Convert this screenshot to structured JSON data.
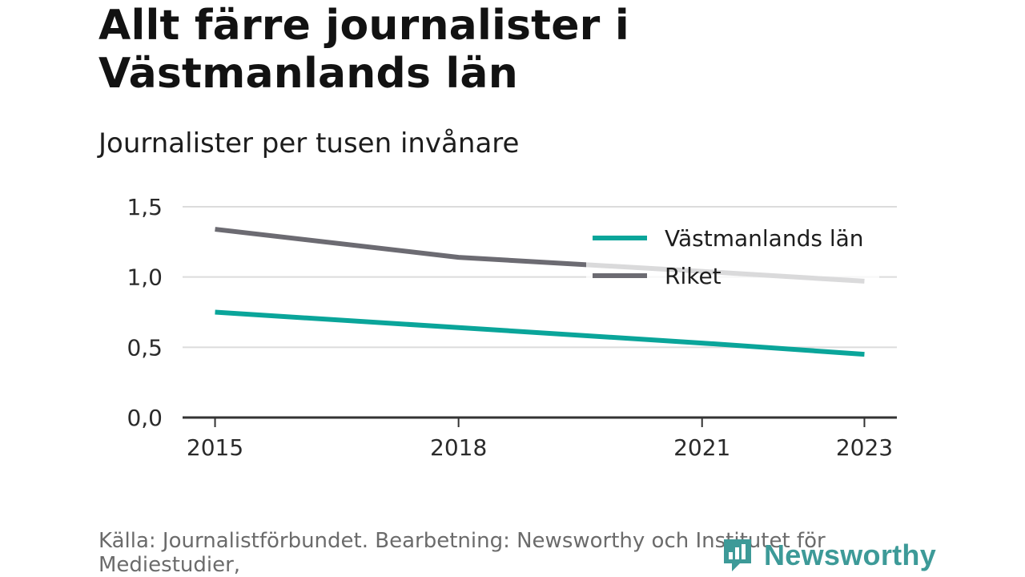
{
  "header": {
    "title": "Allt färre journalister i Västmanlands län",
    "subtitle": "Journalister per tusen invånare"
  },
  "footer": {
    "source": "Källa: Journalistförbundet. Bearbetning: Newsworthy och Institutet för Mediestudier,"
  },
  "logo": {
    "text": "Newsworthy",
    "icon": "newsworthy-logo-icon"
  },
  "chart_data": {
    "type": "line",
    "x": [
      2015,
      2018,
      2021,
      2023
    ],
    "x_tick_labels": [
      "2015",
      "2018",
      "2021",
      "2023"
    ],
    "y_tick_labels": [
      "1,5",
      "1,0",
      "0,5",
      "0,0"
    ],
    "y_ticks": [
      1.5,
      1.0,
      0.5,
      0.0
    ],
    "xlim": [
      2014.6,
      2023.4
    ],
    "ylim": [
      0,
      1.5
    ],
    "grid": true,
    "legend_position": "top-right",
    "series": [
      {
        "name": "Västmanlands län",
        "color": "#0aa59a",
        "points": [
          [
            2015,
            0.75
          ],
          [
            2018,
            0.64
          ],
          [
            2021,
            0.53
          ],
          [
            2023,
            0.45
          ]
        ]
      },
      {
        "name": "Riket",
        "color": "#6c6b72",
        "points": [
          [
            2015,
            1.34
          ],
          [
            2018,
            1.14
          ],
          [
            2021,
            1.04
          ],
          [
            2023,
            0.97
          ]
        ]
      }
    ]
  }
}
